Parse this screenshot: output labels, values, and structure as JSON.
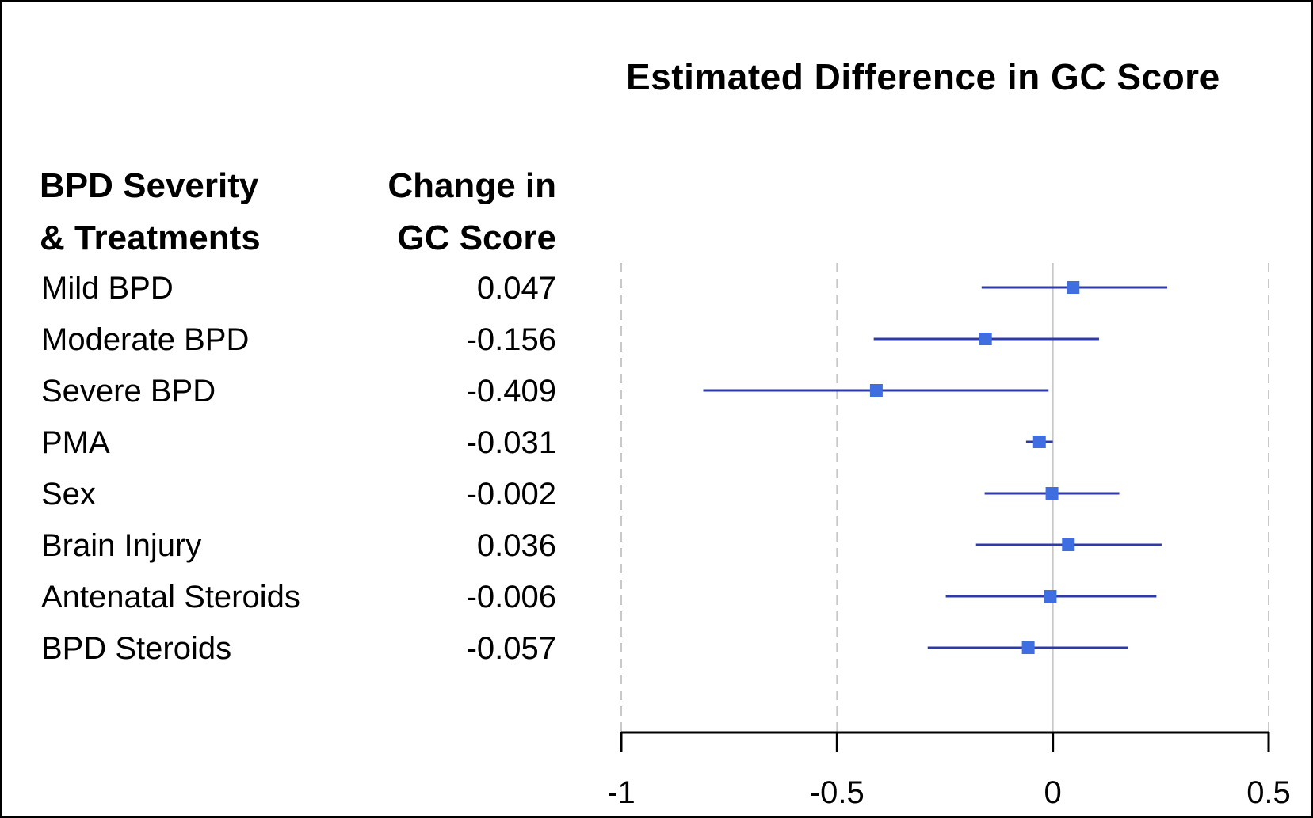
{
  "chart_data": {
    "type": "forest",
    "title": "Estimated Difference in GC Score",
    "column_headers": {
      "label": [
        "BPD Severity",
        "& Treatments"
      ],
      "value": [
        "Change in",
        "GC Score"
      ]
    },
    "rows": [
      {
        "label": "Mild BPD",
        "value_text": "0.047",
        "estimate": 0.047,
        "ci": [
          -0.165,
          0.265
        ]
      },
      {
        "label": "Moderate BPD",
        "value_text": "-0.156",
        "estimate": -0.156,
        "ci": [
          -0.415,
          0.107
        ]
      },
      {
        "label": "Severe BPD",
        "value_text": "-0.409",
        "estimate": -0.409,
        "ci": [
          -0.81,
          -0.01
        ]
      },
      {
        "label": "PMA",
        "value_text": "-0.031",
        "estimate": -0.031,
        "ci": [
          -0.062,
          0.0
        ]
      },
      {
        "label": "Sex",
        "value_text": "-0.002",
        "estimate": -0.002,
        "ci": [
          -0.158,
          0.154
        ]
      },
      {
        "label": "Brain Injury",
        "value_text": "0.036",
        "estimate": 0.036,
        "ci": [
          -0.178,
          0.252
        ]
      },
      {
        "label": "Antenatal Steroids",
        "value_text": "-0.006",
        "estimate": -0.006,
        "ci": [
          -0.248,
          0.24
        ]
      },
      {
        "label": "BPD Steroids",
        "value_text": "-0.057",
        "estimate": -0.057,
        "ci": [
          -0.29,
          0.175
        ]
      }
    ],
    "x_ticks": [
      {
        "value": -1,
        "label": "-1"
      },
      {
        "value": -0.5,
        "label": "-0.5"
      },
      {
        "value": 0,
        "label": "0"
      },
      {
        "value": 0.5,
        "label": "0.5"
      }
    ],
    "xlim": [
      -1,
      0.5
    ],
    "grid": true,
    "colors": {
      "ci_line": "#2e3aa8",
      "point": "#3f6ee0",
      "grid": "#c8c8c8",
      "axis": "#000000"
    }
  }
}
